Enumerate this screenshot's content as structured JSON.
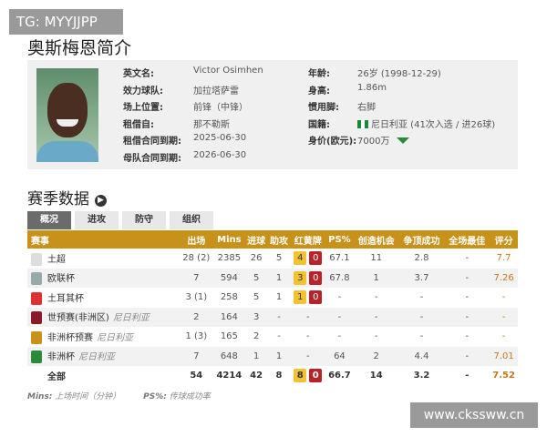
{
  "watermark_top": "TG: MYYJJPP",
  "watermark_bottom": "www.ckssww.cn",
  "title": "奥斯梅恩简介",
  "profile": {
    "left": [
      [
        "英文名:",
        "Victor Osimhen"
      ],
      [
        "效力球队:",
        "加拉塔萨雷"
      ],
      [
        "场上位置:",
        "前锋（中锋）"
      ],
      [
        "租借自:",
        "那不勒斯"
      ],
      [
        "租借合同到期:",
        "2025-06-30"
      ],
      [
        "母队合同到期:",
        "2026-06-30"
      ]
    ],
    "right": [
      [
        "年龄:",
        "26岁 (1998-12-29)"
      ],
      [
        "身高:",
        "1.86m"
      ],
      [
        "惯用脚:",
        "右脚"
      ],
      [
        "国籍:",
        "尼日利亚 (41次入选 / 进26球)"
      ],
      [
        "身价(欧元):",
        "7000万"
      ]
    ],
    "market_trend": "down",
    "colors": {
      "trend": "#2a8a3a"
    }
  },
  "section_title": "赛季数据",
  "tabs": [
    "概况",
    "进攻",
    "防守",
    "组织"
  ],
  "table": {
    "headers": [
      "赛事",
      "出场",
      "Mins",
      "进球",
      "助攻",
      "红黄牌",
      "PS%",
      "创造机会",
      "争顶成功",
      "全场最佳",
      "评分"
    ],
    "rows": [
      {
        "name": "土超",
        "team": "",
        "apps": "28 (2)",
        "mins": "2385",
        "goals": "26",
        "assists": "5",
        "yellow": "4",
        "red": "0",
        "ps": "67.1",
        "chances": "11",
        "aerial": "2.8",
        "motm": "-",
        "rating": "7.7"
      },
      {
        "name": "欧联杯",
        "team": "",
        "apps": "7",
        "mins": "594",
        "goals": "5",
        "assists": "1",
        "yellow": "3",
        "red": "0",
        "ps": "67.8",
        "chances": "1",
        "aerial": "3.7",
        "motm": "-",
        "rating": "7.26"
      },
      {
        "name": "土耳其杯",
        "team": "",
        "apps": "3 (1)",
        "mins": "258",
        "goals": "5",
        "assists": "1",
        "yellow": "1",
        "red": "0",
        "ps": "-",
        "chances": "-",
        "aerial": "-",
        "motm": "-",
        "rating": "-"
      },
      {
        "name": "世预赛(非洲区)",
        "team": "尼日利亚",
        "apps": "2",
        "mins": "164",
        "goals": "3",
        "assists": "-",
        "cards": "-",
        "ps": "-",
        "chances": "-",
        "aerial": "-",
        "motm": "-",
        "rating": "-"
      },
      {
        "name": "非洲杯预赛",
        "team": "尼日利亚",
        "apps": "1 (3)",
        "mins": "165",
        "goals": "2",
        "assists": "-",
        "cards": "-",
        "ps": "-",
        "chances": "-",
        "aerial": "-",
        "motm": "-",
        "rating": "-"
      },
      {
        "name": "非洲杯",
        "team": "尼日利亚",
        "apps": "7",
        "mins": "648",
        "goals": "1",
        "assists": "1",
        "cards": "-",
        "ps": "64",
        "chances": "2",
        "aerial": "4.4",
        "motm": "-",
        "rating": "7.01"
      }
    ],
    "total": {
      "name": "全部",
      "apps": "54",
      "mins": "4214",
      "goals": "42",
      "assists": "8",
      "yellow": "8",
      "red": "0",
      "ps": "66.7",
      "chances": "14",
      "aerial": "3.2",
      "motm": "-",
      "rating": "7.52"
    }
  },
  "notes": [
    {
      "key": "Mins:",
      "text": "上场时间（分钟）"
    },
    {
      "key": "PS%:",
      "text": "传球成功率"
    }
  ],
  "colors": {
    "header": "#c8921a",
    "yellow_card": "#f2c230",
    "red_card": "#b8232a",
    "rating": "#c8761a"
  }
}
